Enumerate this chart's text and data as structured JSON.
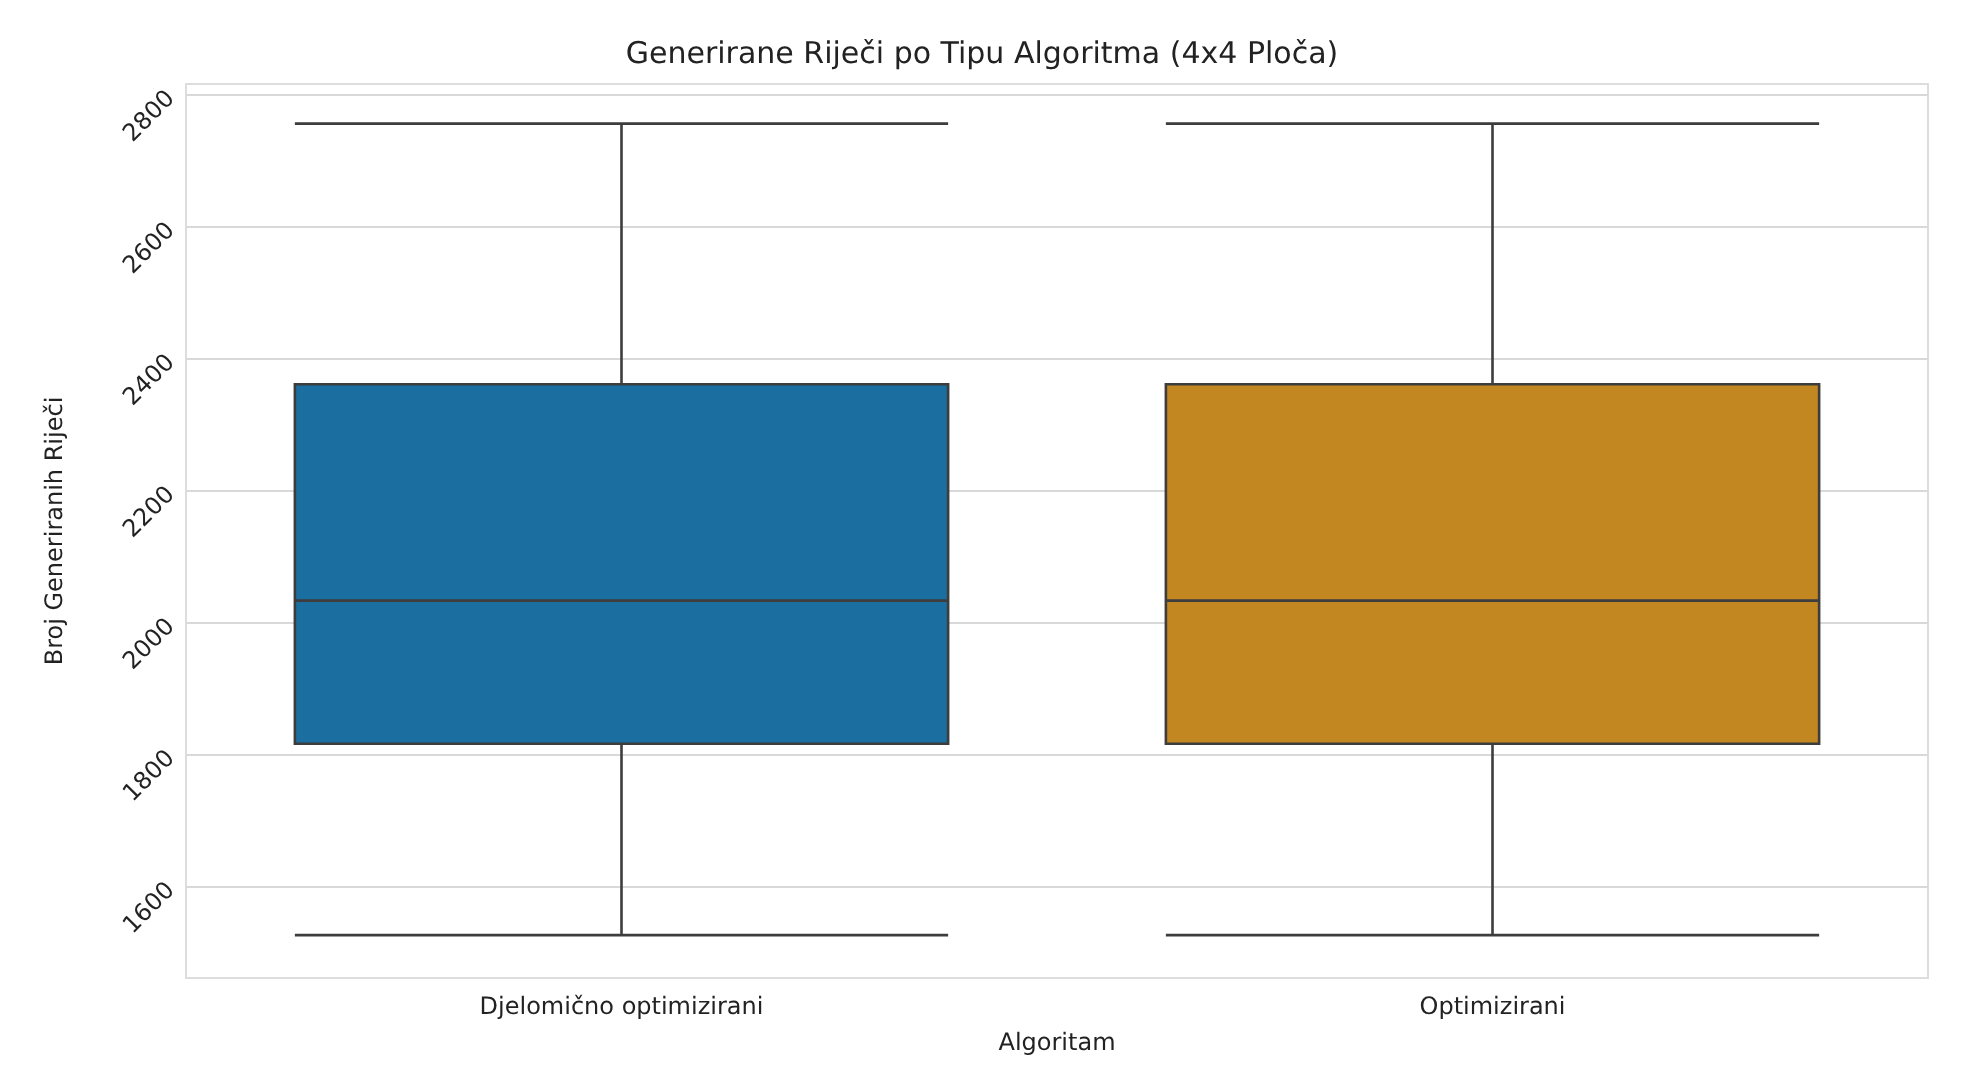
{
  "chart_data": {
    "type": "box",
    "title": "Generirane Riječi po Tipu Algoritma (4x4 Ploča)",
    "xlabel": "Algoritam",
    "ylabel": "Broj Generiranih Riječi",
    "categories": [
      "Djelomično optimizirani",
      "Optimizirani"
    ],
    "boxes": [
      {
        "low": 1525,
        "q1": 1815,
        "median": 2032,
        "q3": 2360,
        "high": 2755
      },
      {
        "low": 1525,
        "q1": 1815,
        "median": 2032,
        "q3": 2360,
        "high": 2755
      }
    ],
    "colors": [
      "#1a6fa0",
      "#c28720"
    ],
    "ylim": [
      1460,
      2815
    ],
    "yticks": [
      1600,
      1800,
      2000,
      2200,
      2400,
      2600,
      2800
    ],
    "grid": "y"
  }
}
